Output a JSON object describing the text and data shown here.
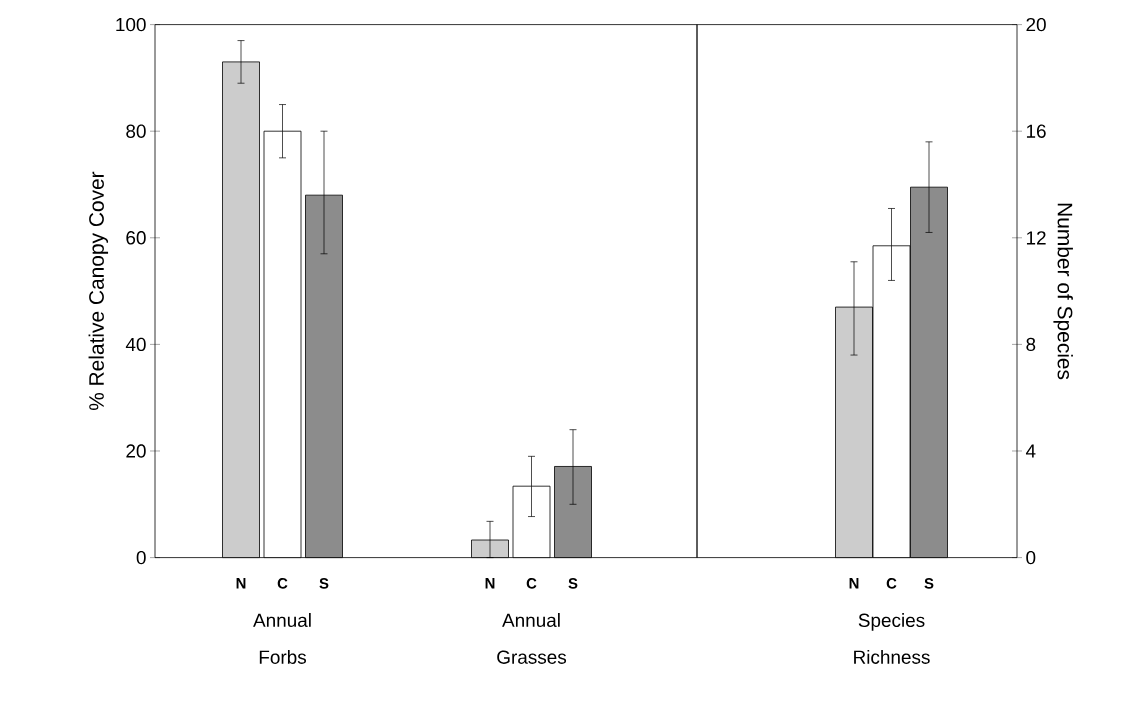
{
  "chart_data": [
    {
      "type": "bar",
      "categories": [
        "N",
        "C",
        "S",
        null,
        null,
        null,
        "N",
        "C",
        "S"
      ],
      "ylabel": "% Relative Canopy Cover",
      "ylim": [
        0,
        100
      ],
      "yticks": [
        0,
        20,
        40,
        60,
        80,
        100
      ],
      "series": [
        {
          "colors": [
            "#cccccc",
            "#ffffff",
            "#8c8c8c",
            null,
            null,
            null,
            "#cccccc",
            "#ffffff",
            "#8c8c8c"
          ],
          "values": [
            93,
            80,
            68,
            null,
            null,
            null,
            3.3,
            13.4,
            17.1
          ],
          "errors": [
            [
              89,
              97
            ],
            [
              75,
              85
            ],
            [
              57,
              80
            ],
            null,
            null,
            null,
            [
              0,
              6.8
            ],
            [
              7.7,
              19
            ],
            [
              10,
              24
            ]
          ]
        }
      ],
      "annotations": [
        "Annual Forbs",
        "Annual Grasses"
      ]
    },
    {
      "type": "bar",
      "categories": [
        "N",
        "C",
        "S"
      ],
      "y2label": "Number of Species",
      "y2lim": [
        0,
        20
      ],
      "y2ticks": [
        0,
        4,
        8,
        12,
        16,
        20
      ],
      "series": [
        {
          "colors": [
            "#cccccc",
            "#ffffff",
            "#8c8c8c"
          ],
          "axis": "y2",
          "values": [
            9.4,
            11.7,
            13.9
          ],
          "errors": [
            [
              7.6,
              11.1
            ],
            [
              10.4,
              13.1
            ],
            [
              12.2,
              15.6
            ]
          ]
        }
      ],
      "annotations": [
        "Species Richness"
      ]
    }
  ]
}
